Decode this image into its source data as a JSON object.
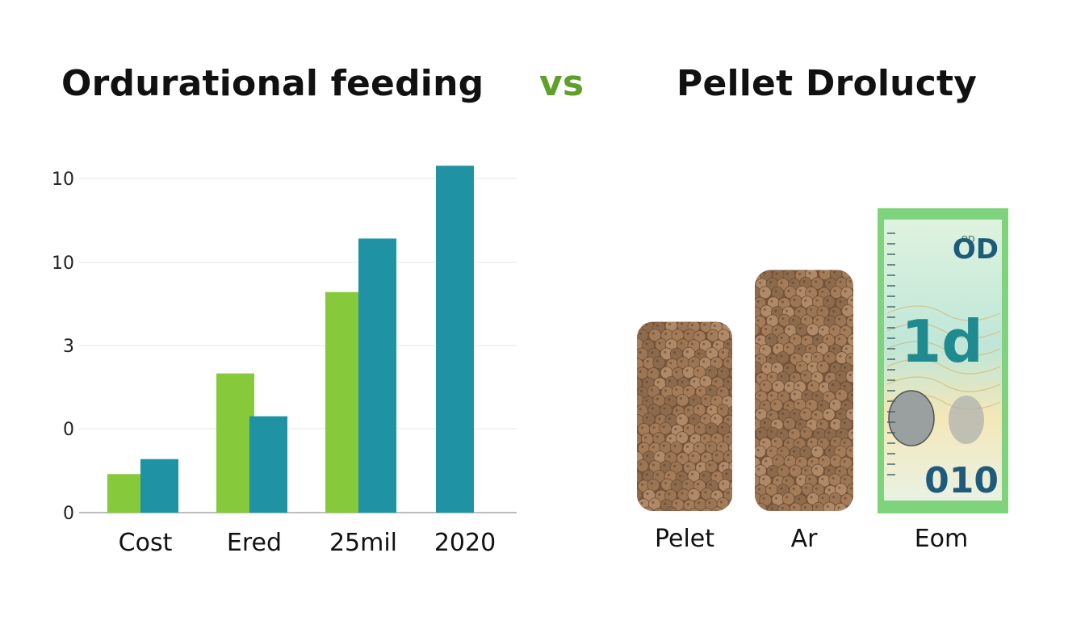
{
  "header": {
    "left_title": "Ordurational feeding",
    "vs": "vs",
    "right_title": "Pellet Drolucty"
  },
  "colors": {
    "green": "#86c93b",
    "teal": "#1f92a4",
    "pellet": "#9b7554",
    "pellet_dark": "#6e4f36",
    "vs": "#5f9f2a"
  },
  "chart_data": {
    "type": "bar",
    "categories": [
      "Cost",
      "Ered",
      "25mil",
      "2020"
    ],
    "y_tick_labels": [
      "0",
      "0",
      "3",
      "10",
      "10"
    ],
    "series": [
      {
        "color": "#86c93b",
        "values": [
          0.9,
          3.25,
          5.15,
          null
        ]
      },
      {
        "color": "#1f92a4",
        "values": [
          1.25,
          2.25,
          6.4,
          8.1
        ]
      }
    ],
    "ylim": [
      0,
      8.2
    ],
    "grid": true
  },
  "right_panel": {
    "items": [
      {
        "label": "Pelet",
        "kind": "pellets",
        "level": 0.62
      },
      {
        "label": "Ar",
        "kind": "pellets",
        "level": 0.79
      },
      {
        "label": "Eom",
        "kind": "banknote",
        "level": 1.0
      }
    ],
    "banknote_text": {
      "top": "OD",
      "middle": "1d",
      "bottom": "010",
      "small": "OD"
    }
  }
}
